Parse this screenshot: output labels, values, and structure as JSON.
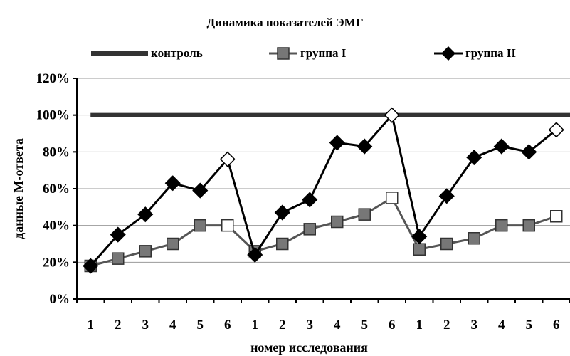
{
  "chart_data": {
    "type": "line",
    "title": "Динамика показателей ЭМГ",
    "xlabel": "номер исследования",
    "ylabel": "данные М-ответа",
    "categories": [
      "1",
      "2",
      "3",
      "4",
      "5",
      "6",
      "1",
      "2",
      "3",
      "4",
      "5",
      "6",
      "1",
      "2",
      "3",
      "4",
      "5",
      "6"
    ],
    "ylim": [
      0,
      120
    ],
    "yticks": [
      "0%",
      "20%",
      "40%",
      "60%",
      "80%",
      "100%",
      "120%"
    ],
    "grid": true,
    "legend_position": "top",
    "series": [
      {
        "name": "контроль",
        "marker": "none",
        "color": "#333333",
        "values": [
          100,
          100,
          100,
          100,
          100,
          100,
          100,
          100,
          100,
          100,
          100,
          100,
          100,
          100,
          100,
          100,
          100,
          100
        ]
      },
      {
        "name": "группа I",
        "marker": "square",
        "color": "#555555",
        "values": [
          18,
          22,
          26,
          30,
          40,
          40,
          26,
          30,
          38,
          42,
          46,
          55,
          27,
          30,
          33,
          40,
          40,
          45
        ]
      },
      {
        "name": "группа II",
        "marker": "diamond",
        "color": "#000000",
        "values": [
          18,
          35,
          46,
          63,
          59,
          76,
          24,
          47,
          54,
          85,
          83,
          100,
          34,
          56,
          77,
          83,
          80,
          92
        ]
      }
    ],
    "highlighted_points": [
      5,
      11,
      17
    ]
  }
}
